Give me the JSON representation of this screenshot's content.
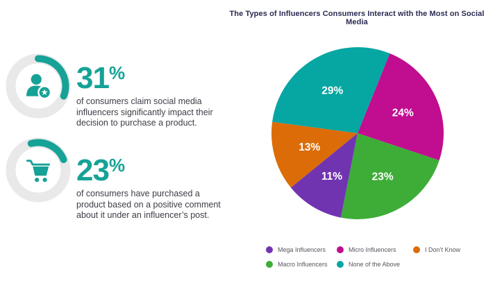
{
  "colors": {
    "accent_teal": "#16A296",
    "heading": "#2B2A52",
    "body_text": "#3C3C46",
    "legend_text": "#55555E",
    "donut_track": "#E9E9E9",
    "pie_label": "#FFFFFF"
  },
  "stats": [
    {
      "number": "31",
      "percent_sign": "%",
      "icon": "person-star-icon",
      "description_lines": [
        "of consumers claim social media",
        "influencers significantly impact their",
        "decision to purchase a product."
      ]
    },
    {
      "number": "23",
      "percent_sign": "%",
      "icon": "shopping-cart-icon",
      "description_lines": [
        "of consumers have purchased a",
        "product based on a positive comment",
        "about it under an influencer’s post."
      ]
    }
  ],
  "chart_data": {
    "type": "pie",
    "title": "The Types of Influencers Consumers Interact with the Most on Social Media",
    "slices": [
      {
        "label": "Micro Influencers",
        "value": 24,
        "color": "#C10D90"
      },
      {
        "label": "Macro Influencers",
        "value": 23,
        "color": "#3DAD38"
      },
      {
        "label": "Mega Influencers",
        "value": 11,
        "color": "#7134B0"
      },
      {
        "label": "I Don’t Know",
        "value": 13,
        "color": "#DC6C08"
      },
      {
        "label": "None of the Above",
        "value": 29,
        "color": "#06A6A2"
      }
    ],
    "legend": [
      {
        "label": "Mega Influencers",
        "color": "#7134B0"
      },
      {
        "label": "Micro Influencers",
        "color": "#C10D90"
      },
      {
        "label": "I Don’t Know",
        "color": "#DC6C08"
      },
      {
        "label": "Macro Influencers",
        "color": "#3DAD38"
      },
      {
        "label": "None of the Above",
        "color": "#06A6A2"
      }
    ],
    "legend_position": "bottom"
  }
}
